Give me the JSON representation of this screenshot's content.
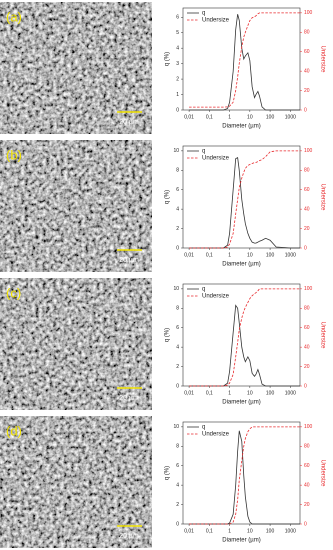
{
  "chart_data": [
    {
      "type": "line",
      "image_label": "(a)",
      "scale_bar_label": "20 µm",
      "xlabel": "Diameter (µm)",
      "ylabel": "q (%)",
      "y2label": "Undersize",
      "xscale": "log",
      "x": [
        0.01,
        0.5,
        0.8,
        1,
        1.5,
        2,
        2.5,
        3,
        4,
        5,
        6,
        8,
        10,
        13,
        17,
        20,
        25,
        30,
        40,
        60,
        100,
        200,
        1000,
        3000
      ],
      "xlim": [
        0.005,
        3000
      ],
      "xticks": [
        {
          "value": 0.01,
          "label": "0,01"
        },
        {
          "value": 0.1,
          "label": "0,1"
        },
        1,
        10,
        100,
        1000
      ],
      "ylim": [
        0,
        6.6
      ],
      "yticks": [
        0,
        1,
        2,
        3,
        4,
        5,
        6
      ],
      "y2lim": [
        0,
        105
      ],
      "y2ticks": [
        0,
        20,
        40,
        60,
        80,
        100
      ],
      "series": [
        {
          "name": "q",
          "color": "#333333",
          "style": "solid",
          "values": [
            0,
            0,
            0.1,
            0.5,
            2.5,
            5.2,
            6.2,
            5.8,
            4,
            3.3,
            3.5,
            3.7,
            3.2,
            1.5,
            0.8,
            1.0,
            1.2,
            0.9,
            0.2,
            0,
            0,
            0,
            0,
            0
          ]
        },
        {
          "name": "Undersize",
          "color": "#e8292c",
          "style": "dashed",
          "axis": "y2",
          "values": [
            3,
            3,
            3.2,
            4,
            8,
            20,
            34,
            48,
            65,
            75,
            80,
            87,
            92,
            95,
            96,
            97,
            99,
            100,
            100,
            100,
            100,
            100,
            100,
            100
          ]
        }
      ]
    },
    {
      "type": "line",
      "image_label": "(b)",
      "scale_bar_label": "20 µm",
      "xlabel": "Diameter (µm)",
      "ylabel": "q (%)",
      "y2label": "Undersize",
      "xscale": "log",
      "x": [
        0.01,
        0.5,
        0.8,
        1,
        1.5,
        2,
        2.5,
        3,
        4,
        5,
        6,
        8,
        10,
        13,
        17,
        20,
        25,
        30,
        40,
        60,
        100,
        200,
        1000,
        3000
      ],
      "xlim": [
        0.005,
        3000
      ],
      "xticks": [
        {
          "value": 0.01,
          "label": "0,01"
        },
        {
          "value": 0.1,
          "label": "0,1"
        },
        1,
        10,
        100,
        1000
      ],
      "ylim": [
        0,
        10.5
      ],
      "yticks": [
        0,
        2,
        4,
        6,
        8,
        10
      ],
      "y2lim": [
        0,
        105
      ],
      "y2ticks": [
        0,
        20,
        40,
        60,
        80,
        100
      ],
      "series": [
        {
          "name": "q",
          "color": "#333333",
          "style": "solid",
          "values": [
            0,
            0,
            0.3,
            1.5,
            6,
            9.2,
            9.3,
            8,
            5,
            3.5,
            2.5,
            1.5,
            1,
            0.6,
            0.5,
            0.5,
            0.6,
            0.7,
            0.8,
            1.0,
            0.8,
            0.1,
            0,
            0
          ]
        },
        {
          "name": "Undersize",
          "color": "#e8292c",
          "style": "dashed",
          "axis": "y2",
          "values": [
            0,
            0,
            1,
            4,
            15,
            35,
            50,
            62,
            72,
            78,
            82,
            85,
            86,
            87,
            88,
            88,
            89,
            90,
            91,
            94,
            99,
            100,
            100,
            100
          ]
        }
      ]
    },
    {
      "type": "line",
      "image_label": "(c)",
      "scale_bar_label": "20 µm",
      "xlabel": "Diameter (µm)",
      "ylabel": "q (%)",
      "y2label": "Undersize",
      "xscale": "log",
      "x": [
        0.01,
        0.5,
        0.8,
        1,
        1.5,
        2,
        2.5,
        3,
        4,
        5,
        6,
        8,
        10,
        13,
        17,
        20,
        25,
        30,
        40,
        60,
        100,
        200,
        1000,
        3000
      ],
      "xlim": [
        0.005,
        3000
      ],
      "xticks": [
        {
          "value": 0.01,
          "label": "0,01"
        },
        {
          "value": 0.1,
          "label": "0,1"
        },
        1,
        10,
        100,
        1000
      ],
      "ylim": [
        0,
        10.5
      ],
      "yticks": [
        0,
        2,
        4,
        6,
        8,
        10
      ],
      "y2lim": [
        0,
        105
      ],
      "y2ticks": [
        0,
        20,
        40,
        60,
        80,
        100
      ],
      "series": [
        {
          "name": "q",
          "color": "#333333",
          "style": "solid",
          "values": [
            0,
            0,
            0.3,
            1.5,
            5.5,
            8.3,
            8,
            6.5,
            4,
            3,
            2.5,
            3,
            2.6,
            1.3,
            1,
            1.2,
            1.7,
            1.2,
            0.2,
            0,
            0,
            0,
            0,
            0
          ]
        },
        {
          "name": "Undersize",
          "color": "#e8292c",
          "style": "dashed",
          "axis": "y2",
          "values": [
            0,
            0,
            1,
            3,
            12,
            30,
            45,
            58,
            70,
            77,
            81,
            86,
            90,
            93,
            95,
            96,
            98,
            100,
            100,
            100,
            100,
            100,
            100,
            100
          ]
        }
      ]
    },
    {
      "type": "line",
      "image_label": "(d)",
      "scale_bar_label": "20 µm",
      "xlabel": "Diameter (µm)",
      "ylabel": "q (%)",
      "y2label": "Undersize",
      "xscale": "log",
      "x": [
        0.01,
        0.5,
        0.8,
        1,
        1.5,
        2,
        2.5,
        3,
        4,
        5,
        6,
        8,
        10,
        13,
        17,
        20,
        25,
        30,
        40,
        60,
        100,
        200,
        1000,
        3000
      ],
      "xlim": [
        0.005,
        3000
      ],
      "xticks": [
        {
          "value": 0.01,
          "label": "0,01"
        },
        {
          "value": 0.1,
          "label": "0,1"
        },
        1,
        10,
        100,
        1000
      ],
      "ylim": [
        0,
        10.5
      ],
      "yticks": [
        0,
        2,
        4,
        6,
        8,
        10
      ],
      "y2lim": [
        0,
        105
      ],
      "y2ticks": [
        0,
        20,
        40,
        60,
        80,
        100
      ],
      "series": [
        {
          "name": "q",
          "color": "#333333",
          "style": "solid",
          "values": [
            0,
            0,
            0,
            0.1,
            1,
            4,
            7.5,
            9.6,
            8.5,
            5,
            2.8,
            0.8,
            0.2,
            0,
            0,
            0,
            0,
            0,
            0,
            0,
            0,
            0,
            0,
            0
          ]
        },
        {
          "name": "Undersize",
          "color": "#e8292c",
          "style": "dashed",
          "axis": "y2",
          "values": [
            0,
            0,
            0,
            0,
            2,
            10,
            25,
            45,
            65,
            80,
            88,
            95,
            98,
            100,
            100,
            100,
            100,
            100,
            100,
            100,
            100,
            100,
            100,
            100
          ]
        }
      ]
    }
  ]
}
